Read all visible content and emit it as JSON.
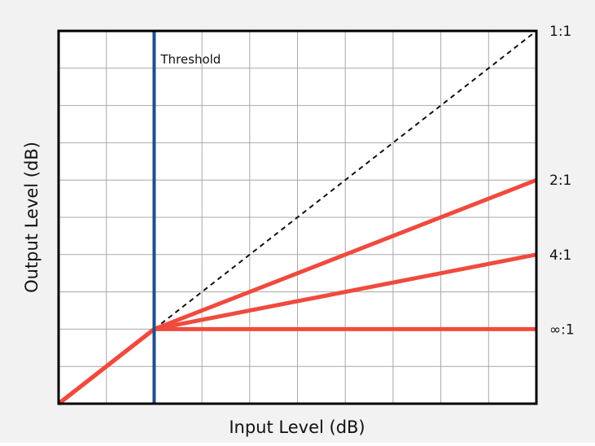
{
  "chart_data": {
    "type": "line",
    "xlabel": "Input Level (dB)",
    "ylabel": "Output Level (dB)",
    "xlim": [
      0,
      10
    ],
    "ylim": [
      0,
      10
    ],
    "grid": true,
    "threshold": {
      "x": 2,
      "label": "Threshold",
      "color": "#1f4e8c"
    },
    "series": [
      {
        "name": "1:1",
        "style": "dashed",
        "color": "#111111",
        "points": [
          [
            2,
            2
          ],
          [
            10,
            10
          ]
        ]
      },
      {
        "name": "2:1",
        "style": "solid",
        "color": "#f04a3e",
        "points": [
          [
            0,
            0
          ],
          [
            2,
            2
          ],
          [
            10,
            6
          ]
        ]
      },
      {
        "name": "4:1",
        "style": "solid",
        "color": "#f04a3e",
        "points": [
          [
            0,
            0
          ],
          [
            2,
            2
          ],
          [
            10,
            4
          ]
        ]
      },
      {
        "name": "∞:1",
        "style": "solid",
        "color": "#f04a3e",
        "points": [
          [
            0,
            0
          ],
          [
            2,
            2
          ],
          [
            10,
            2
          ]
        ]
      }
    ]
  }
}
